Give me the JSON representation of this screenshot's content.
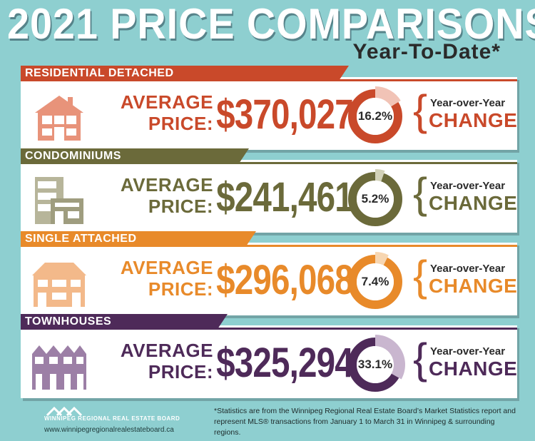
{
  "header": {
    "title": "2021 PRICE COMPARISONS",
    "subtitle": "Year-To-Date*"
  },
  "cards": [
    {
      "heading": "RESIDENTIAL DETACHED",
      "avg_line1": "AVERAGE",
      "avg_line2": "PRICE:",
      "price": "$370,027",
      "change_pct": "16.2%",
      "change_value": 16.2,
      "yoy": "Year-over-Year",
      "change_label": "CHANGE",
      "color": "#c9492a",
      "light": "#f1c3b6",
      "icon": "house-icon"
    },
    {
      "heading": "CONDOMINIUMS",
      "avg_line1": "AVERAGE",
      "avg_line2": "PRICE:",
      "price": "$241,461",
      "change_pct": "5.2%",
      "change_value": 5.2,
      "yoy": "Year-over-Year",
      "change_label": "CHANGE",
      "color": "#6b6a3a",
      "light": "#d3d2b8",
      "icon": "condo-building-icon"
    },
    {
      "heading": "SINGLE ATTACHED",
      "avg_line1": "AVERAGE",
      "avg_line2": "PRICE:",
      "price": "$296,068",
      "change_pct": "7.4%",
      "change_value": 7.4,
      "yoy": "Year-over-Year",
      "change_label": "CHANGE",
      "color": "#e88a2a",
      "light": "#f7d6b1",
      "icon": "attached-house-icon"
    },
    {
      "heading": "TOWNHOUSES",
      "avg_line1": "AVERAGE",
      "avg_line2": "PRICE:",
      "price": "$325,294",
      "change_pct": "33.1%",
      "change_value": 33.1,
      "yoy": "Year-over-Year",
      "change_label": "CHANGE",
      "color": "#4e2a59",
      "light": "#c9b6cf",
      "icon": "townhouse-icon"
    }
  ],
  "footer": {
    "board_name": "WINNIPEG REGIONAL REAL ESTATE BOARD",
    "url": "www.winnipegregionalrealestateboard.ca",
    "note_line1": "*Statistics are from the Winnipeg Regional Real Estate Board’s Market Statistics report and",
    "note_line2": "represent MLS® transactions from January 1 to March 31 in Winnipeg & surrounding regions."
  }
}
